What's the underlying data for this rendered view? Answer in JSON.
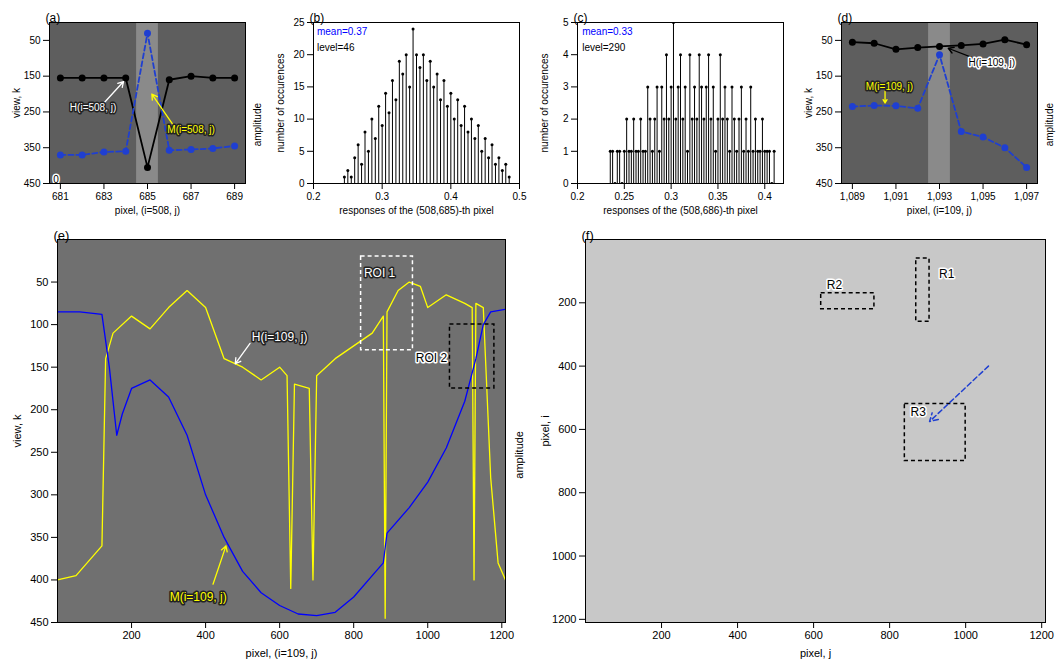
{
  "chart_data": [
    {
      "type": "image_profile",
      "title": "(a)",
      "xlabel": "pixel, (i=508, j)",
      "ylabel": "view, k",
      "y2label": "amplitude",
      "xlim": [
        680.5,
        689.5
      ],
      "xticks": [
        681,
        683,
        685,
        687,
        689
      ],
      "ylim": [
        450,
        0
      ],
      "yticks": [
        50,
        150,
        250,
        350,
        450
      ],
      "highlight": [
        684.5,
        685.5
      ],
      "series": [
        {
          "name": "H(i=508, j)",
          "color": "#000000",
          "line_style": "solid",
          "marker": "circle",
          "x": [
            681,
            682,
            683,
            684,
            685,
            686,
            687,
            688,
            689
          ],
          "values": [
            155,
            155,
            155,
            155,
            405,
            160,
            150,
            155,
            155
          ]
        },
        {
          "name": "M(i=508, j)",
          "color": "#1f3fd1",
          "line_style": "dashed",
          "marker": "circle",
          "x": [
            681,
            682,
            683,
            684,
            685,
            686,
            687,
            688,
            689
          ],
          "values": [
            370,
            370,
            362,
            360,
            30,
            357,
            355,
            352,
            345
          ]
        }
      ],
      "annotations": [
        {
          "text": "H(i=508, j)",
          "color": "#ffffff",
          "x": 682.5,
          "y": 238,
          "arrow_from": [
            683,
            225
          ],
          "arrow_to": [
            683.9,
            165
          ]
        },
        {
          "text": "M(i=508, j)",
          "color": "#ffff00",
          "x": 687,
          "y": 300,
          "arrow_from": [
            686.2,
            288
          ],
          "arrow_to": [
            685.2,
            200
          ]
        },
        {
          "text": "0",
          "color": "#000000",
          "x": 680.8,
          "y": 440
        }
      ]
    },
    {
      "type": "stem",
      "title": "(b)",
      "xlabel": "responses of the (508,685)-th pixel",
      "ylabel": "number of occurences",
      "xlim": [
        0.2,
        0.5
      ],
      "xticks": [
        0.2,
        0.3,
        0.4,
        0.5
      ],
      "ylim": [
        0,
        25
      ],
      "yticks": [
        0,
        5,
        10,
        15,
        20,
        25
      ],
      "color": "#000000",
      "x": [
        0.245,
        0.25,
        0.255,
        0.26,
        0.265,
        0.27,
        0.275,
        0.28,
        0.285,
        0.29,
        0.295,
        0.3,
        0.305,
        0.31,
        0.315,
        0.32,
        0.325,
        0.33,
        0.335,
        0.34,
        0.345,
        0.35,
        0.355,
        0.36,
        0.365,
        0.37,
        0.375,
        0.38,
        0.385,
        0.39,
        0.395,
        0.4,
        0.405,
        0.41,
        0.415,
        0.42,
        0.425,
        0.43,
        0.435,
        0.44,
        0.445,
        0.45,
        0.455,
        0.46,
        0.465,
        0.47,
        0.475,
        0.48,
        0.485
      ],
      "values": [
        1,
        2,
        1,
        4,
        6,
        3,
        8,
        5,
        10,
        7,
        12,
        9,
        14,
        11,
        16,
        13,
        19,
        17,
        20,
        15,
        24,
        20,
        18,
        20,
        16,
        19,
        15,
        17,
        13,
        16,
        12,
        14,
        10,
        13,
        9,
        12,
        8,
        10,
        7,
        9,
        5,
        7,
        4,
        6,
        3,
        4,
        2,
        3,
        1
      ],
      "annotations": [
        {
          "text": "mean=0.37",
          "color": "#0000ff",
          "x": 0.205,
          "y": 23.5
        },
        {
          "text": "level=46",
          "color": "#000000",
          "x": 0.205,
          "y": 21
        }
      ]
    },
    {
      "type": "stem",
      "title": "(c)",
      "xlabel": "responses of the (508,686)-th pixel",
      "ylabel": "number of occurences",
      "xlim": [
        0.2,
        0.42
      ],
      "xticks": [
        0.2,
        0.25,
        0.3,
        0.35,
        0.4
      ],
      "ylim": [
        0,
        5
      ],
      "yticks": [
        0,
        1,
        2,
        3,
        4,
        5
      ],
      "color": "#000000",
      "x": [
        0.235,
        0.2375,
        0.24,
        0.2425,
        0.245,
        0.2475,
        0.25,
        0.2525,
        0.255,
        0.2575,
        0.26,
        0.2625,
        0.265,
        0.2675,
        0.27,
        0.2725,
        0.275,
        0.2775,
        0.28,
        0.2825,
        0.285,
        0.2875,
        0.29,
        0.2925,
        0.295,
        0.2975,
        0.3,
        0.3025,
        0.305,
        0.3075,
        0.31,
        0.3125,
        0.315,
        0.3175,
        0.32,
        0.3225,
        0.325,
        0.3275,
        0.33,
        0.3325,
        0.335,
        0.3375,
        0.34,
        0.3425,
        0.345,
        0.3475,
        0.35,
        0.3525,
        0.355,
        0.3575,
        0.36,
        0.3625,
        0.365,
        0.3675,
        0.37,
        0.3725,
        0.375,
        0.3775,
        0.38,
        0.3825,
        0.385,
        0.3875,
        0.39,
        0.3925,
        0.395,
        0.3975,
        0.4,
        0.4025,
        0.405,
        0.4075,
        0.41
      ],
      "values": [
        1,
        1,
        0,
        1,
        1,
        0,
        1,
        2,
        1,
        1,
        2,
        1,
        1,
        2,
        1,
        1,
        3,
        2,
        1,
        2,
        3,
        1,
        3,
        2,
        4,
        2,
        3,
        5,
        2,
        3,
        4,
        2,
        3,
        1,
        4,
        2,
        3,
        2,
        4,
        3,
        2,
        3,
        4,
        2,
        3,
        1,
        2,
        4,
        2,
        3,
        2,
        1,
        3,
        2,
        1,
        2,
        3,
        1,
        2,
        1,
        3,
        1,
        2,
        1,
        1,
        2,
        1,
        1,
        1,
        0,
        1
      ],
      "annotations": [
        {
          "text": "mean=0.33",
          "color": "#0000ff",
          "x": 0.205,
          "y": 4.7
        },
        {
          "text": "level=290",
          "color": "#000000",
          "x": 0.205,
          "y": 4.2
        }
      ]
    },
    {
      "type": "image_profile",
      "title": "(d)",
      "xlabel": "pixel, (i=109, j)",
      "ylabel": "view, k",
      "y2label": "amplitude",
      "xlim": [
        1088.5,
        1097.5
      ],
      "xticks": [
        {
          "value": 1089,
          "label": "1,089"
        },
        {
          "value": 1091,
          "label": "1,091"
        },
        {
          "value": 1093,
          "label": "1,093"
        },
        {
          "value": 1095,
          "label": "1,095"
        },
        {
          "value": 1097,
          "label": "1,097"
        }
      ],
      "ylim": [
        450,
        0
      ],
      "yticks": [
        50,
        150,
        250,
        350,
        450
      ],
      "highlight": [
        1092.5,
        1093.5
      ],
      "series": [
        {
          "name": "H(i=109, j)",
          "color": "#000000",
          "line_style": "solid",
          "marker": "circle",
          "x": [
            1089,
            1090,
            1091,
            1092,
            1093,
            1094,
            1095,
            1096,
            1097
          ],
          "values": [
            55,
            58,
            75,
            70,
            67,
            64,
            60,
            48,
            62
          ]
        },
        {
          "name": "M(i=109, j)",
          "color": "#1f3fd1",
          "line_style": "dashed",
          "marker": "circle",
          "x": [
            1089,
            1090,
            1091,
            1092,
            1093,
            1094,
            1095,
            1096,
            1097
          ],
          "values": [
            235,
            232,
            233,
            240,
            90,
            305,
            320,
            350,
            405
          ]
        }
      ],
      "annotations": [
        {
          "text": "H(i=109, j)",
          "color": "#000000",
          "x": 1095.4,
          "y": 112,
          "arrow_from": [
            1094.6,
            100
          ],
          "arrow_to": [
            1093.4,
            72
          ]
        },
        {
          "text": "M(i=109, j)",
          "color": "#ffff00",
          "x": 1090.7,
          "y": 180,
          "arrow_from": [
            1090.5,
            192
          ],
          "arrow_to": [
            1090.5,
            225
          ]
        }
      ]
    },
    {
      "type": "image_profile",
      "title": "(e)",
      "xlabel": "pixel, (i=109, j)",
      "ylabel": "view, k",
      "y2label": "amplitude",
      "xlim": [
        0,
        1210
      ],
      "xticks": [
        200,
        400,
        600,
        800,
        1000,
        1200
      ],
      "ylim": [
        450,
        0
      ],
      "yticks": [
        50,
        100,
        150,
        200,
        250,
        300,
        350,
        400,
        450
      ],
      "series": [
        {
          "name": "H(i=109, j)",
          "color": "#ffff00",
          "line_style": "solid",
          "marker": "none",
          "x": [
            0,
            50,
            100,
            120,
            130,
            150,
            200,
            250,
            300,
            350,
            400,
            450,
            500,
            550,
            600,
            620,
            630,
            640,
            680,
            690,
            700,
            750,
            800,
            850,
            880,
            885,
            890,
            920,
            950,
            980,
            1000,
            1050,
            1100,
            1120,
            1125,
            1130,
            1150,
            1170,
            1190,
            1210
          ],
          "values": [
            400,
            395,
            370,
            360,
            140,
            110,
            90,
            105,
            80,
            60,
            80,
            140,
            150,
            165,
            150,
            160,
            410,
            170,
            175,
            400,
            160,
            140,
            125,
            110,
            90,
            445,
            85,
            60,
            50,
            55,
            80,
            65,
            75,
            80,
            400,
            75,
            80,
            280,
            380,
            400
          ]
        },
        {
          "name": "M(i=109, j)",
          "color": "#0000ff",
          "line_style": "solid",
          "marker": "none",
          "x": [
            0,
            60,
            120,
            140,
            160,
            175,
            200,
            250,
            300,
            350,
            400,
            450,
            500,
            550,
            600,
            650,
            700,
            750,
            800,
            850,
            880,
            890,
            900,
            950,
            1000,
            1050,
            1100,
            1130,
            1150,
            1170,
            1210
          ],
          "values": [
            85,
            85,
            88,
            150,
            230,
            205,
            175,
            165,
            185,
            230,
            300,
            350,
            390,
            415,
            430,
            440,
            442,
            438,
            420,
            395,
            380,
            345,
            340,
            315,
            285,
            245,
            190,
            140,
            100,
            85,
            82
          ]
        }
      ],
      "rois": [
        {
          "label": "ROI 1",
          "color": "#ffffff",
          "x": [
            820,
            960
          ],
          "y": [
            20,
            130
          ],
          "label_x": 870,
          "label_y": 40
        },
        {
          "label": "ROI 2",
          "color": "#000000",
          "x": [
            1060,
            1180
          ],
          "y": [
            100,
            175
          ],
          "label_x": 1010,
          "label_y": 140
        }
      ],
      "annotations": [
        {
          "text": "H(i=109, j)",
          "color": "#ffffff",
          "x": 600,
          "y": 115,
          "arrow_from": [
            520,
            122
          ],
          "arrow_to": [
            480,
            146
          ]
        },
        {
          "text": "M(i=109, j)",
          "color": "#ffff00",
          "x": 380,
          "y": 420,
          "arrow_from": [
            420,
            405
          ],
          "arrow_to": [
            455,
            360
          ]
        }
      ]
    },
    {
      "type": "image_roi",
      "title": "(f)",
      "xlabel": "pixel, j",
      "ylabel": "pixel, i",
      "xlim": [
        0,
        1210
      ],
      "xticks": [
        200,
        400,
        600,
        800,
        1000,
        1200
      ],
      "ylim": [
        1210,
        0
      ],
      "yticks": [
        200,
        400,
        600,
        800,
        1000,
        1200
      ],
      "rois": [
        {
          "label": "R1",
          "color": "#000000",
          "x": [
            870,
            905
          ],
          "y": [
            60,
            260
          ],
          "label_x": 950,
          "label_y": 110
        },
        {
          "label": "R2",
          "color": "#000000",
          "x": [
            620,
            760
          ],
          "y": [
            170,
            220
          ],
          "label_x": 655,
          "label_y": 145
        },
        {
          "label": "R3",
          "color": "#000000",
          "x": [
            840,
            1000
          ],
          "y": [
            520,
            700
          ],
          "label_x": 875,
          "label_y": 545
        }
      ],
      "arrows": [
        {
          "color": "#1f3fd1",
          "line_style": "dashed",
          "from": [
            1060,
            400
          ],
          "to": [
            905,
            575
          ]
        }
      ]
    }
  ]
}
